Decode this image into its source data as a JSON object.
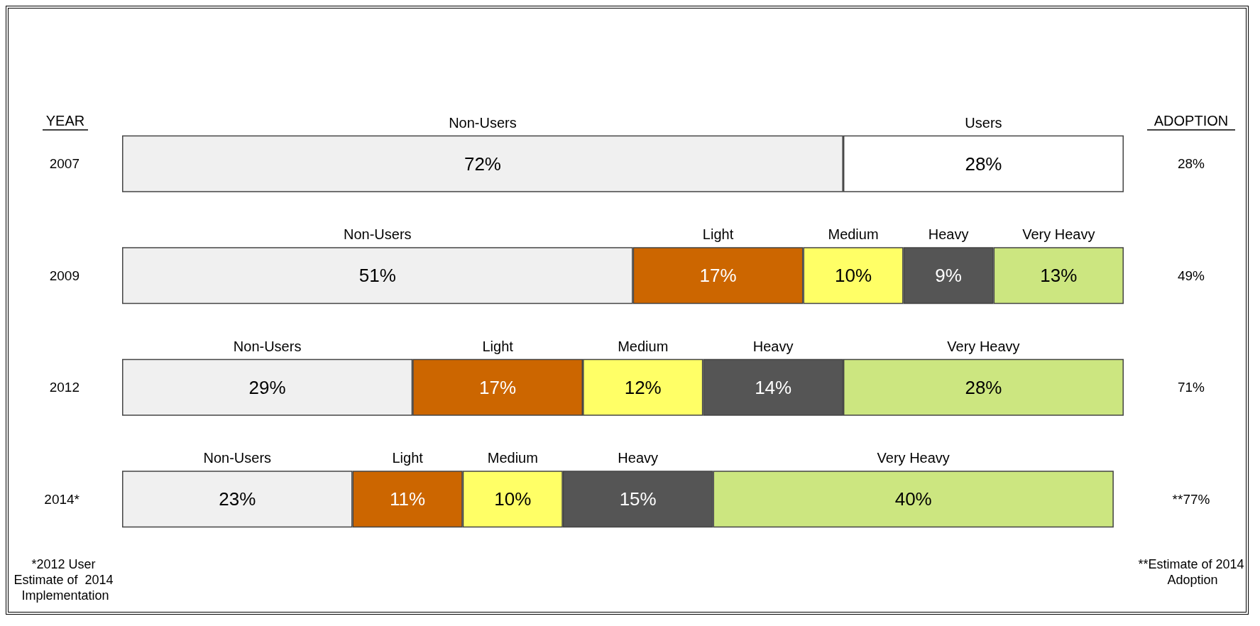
{
  "chart_data": {
    "type": "bar",
    "orientation": "horizontal",
    "stacked": true,
    "tick_labels": "y",
    "ylabel": "YEAR",
    "y2label": "ADOPTION",
    "categories": [
      "2007",
      "2009",
      "2012",
      "2014*"
    ],
    "series": [
      {
        "name": "Non-Users",
        "color": "#f0f0f0",
        "values": [
          72,
          51,
          29,
          23
        ],
        "value_labels": [
          "72%",
          "51%",
          "29%",
          "23%"
        ]
      },
      {
        "name": "Users",
        "color": "#ffffff",
        "values": [
          28,
          null,
          null,
          null
        ],
        "value_labels": [
          "28%",
          null,
          null,
          null
        ]
      },
      {
        "name": "Light",
        "color": "#cc6600",
        "values": [
          null,
          17,
          17,
          11
        ],
        "value_labels": [
          null,
          "17%",
          "17%",
          "11%"
        ]
      },
      {
        "name": "Medium",
        "color": "#ffff66",
        "values": [
          null,
          10,
          12,
          10
        ],
        "value_labels": [
          null,
          "10%",
          "12%",
          "10%"
        ]
      },
      {
        "name": "Heavy",
        "color": "#555555",
        "values": [
          null,
          9,
          14,
          15
        ],
        "value_labels": [
          null,
          "9%",
          "14%",
          "15%"
        ]
      },
      {
        "name": "Very Heavy",
        "color": "#cce680",
        "values": [
          null,
          13,
          28,
          40
        ],
        "value_labels": [
          null,
          "13%",
          "28%",
          "40%"
        ]
      }
    ],
    "annotations": [
      "28%",
      "49%",
      "71%",
      "**77%",
      "*2012 User Estimate of  2014 Implementation",
      "**Estimate of 2014 Adoption"
    ]
  }
}
